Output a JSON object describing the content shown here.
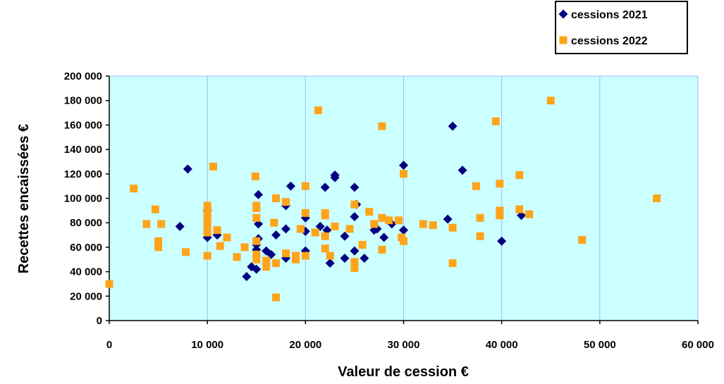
{
  "chart_data": {
    "type": "scatter",
    "xlabel": "Valeur de cession €",
    "ylabel": "Recettes encaissées €",
    "xlim": [
      0,
      60000
    ],
    "ylim": [
      0,
      200000
    ],
    "x_ticks": [
      "0",
      "10 000",
      "20 000",
      "30 000",
      "40 000",
      "50 000",
      "60 000"
    ],
    "y_ticks": [
      "0",
      "20 000",
      "40 000",
      "60 000",
      "80 000",
      "100 000",
      "120 000",
      "140 000",
      "160 000",
      "180 000",
      "200 000"
    ],
    "grid": "vertical",
    "legend_position": "top-right",
    "plot_background": "#ccffff",
    "series": [
      {
        "name": "cessions 2021",
        "marker": "diamond",
        "color": "#000080",
        "points": [
          [
            8000,
            124000
          ],
          [
            7200,
            77000
          ],
          [
            10000,
            68000
          ],
          [
            10000,
            90000
          ],
          [
            11000,
            70000
          ],
          [
            14000,
            36000
          ],
          [
            14500,
            44000
          ],
          [
            15000,
            42000
          ],
          [
            15000,
            58000
          ],
          [
            15000,
            62000
          ],
          [
            15200,
            67000
          ],
          [
            15200,
            79000
          ],
          [
            15200,
            103000
          ],
          [
            16000,
            57000
          ],
          [
            16500,
            54000
          ],
          [
            17000,
            70000
          ],
          [
            18000,
            51000
          ],
          [
            18000,
            75000
          ],
          [
            18000,
            94000
          ],
          [
            18500,
            110000
          ],
          [
            20000,
            57000
          ],
          [
            20000,
            73000
          ],
          [
            20000,
            84000
          ],
          [
            21500,
            77000
          ],
          [
            22000,
            109000
          ],
          [
            22200,
            74000
          ],
          [
            22500,
            47000
          ],
          [
            23000,
            117000
          ],
          [
            23000,
            119000
          ],
          [
            24000,
            51000
          ],
          [
            24000,
            69000
          ],
          [
            25000,
            57000
          ],
          [
            25000,
            85000
          ],
          [
            25000,
            109000
          ],
          [
            25200,
            95000
          ],
          [
            26000,
            51000
          ],
          [
            27000,
            74000
          ],
          [
            27300,
            75000
          ],
          [
            28000,
            68000
          ],
          [
            28800,
            79000
          ],
          [
            30000,
            74000
          ],
          [
            30000,
            127000
          ],
          [
            34500,
            83000
          ],
          [
            35000,
            159000
          ],
          [
            36000,
            123000
          ],
          [
            40000,
            65000
          ],
          [
            42000,
            86000
          ]
        ]
      },
      {
        "name": "cessions 2022",
        "marker": "square",
        "color": "#ffa31a",
        "points": [
          [
            0,
            30000
          ],
          [
            2500,
            108000
          ],
          [
            3800,
            79000
          ],
          [
            4700,
            91000
          ],
          [
            5000,
            60000
          ],
          [
            5000,
            65000
          ],
          [
            5300,
            79000
          ],
          [
            7800,
            56000
          ],
          [
            10000,
            53000
          ],
          [
            10000,
            72000
          ],
          [
            10000,
            77000
          ],
          [
            10000,
            82000
          ],
          [
            10000,
            88000
          ],
          [
            10000,
            94000
          ],
          [
            10600,
            126000
          ],
          [
            11000,
            74000
          ],
          [
            11300,
            61000
          ],
          [
            12000,
            68000
          ],
          [
            13000,
            52000
          ],
          [
            13800,
            60000
          ],
          [
            14900,
            118000
          ],
          [
            15000,
            54000
          ],
          [
            15000,
            65000
          ],
          [
            15000,
            84000
          ],
          [
            15000,
            92000
          ],
          [
            15000,
            94000
          ],
          [
            15000,
            50000
          ],
          [
            16000,
            44000
          ],
          [
            16000,
            49000
          ],
          [
            16800,
            80000
          ],
          [
            17000,
            19000
          ],
          [
            17000,
            47000
          ],
          [
            17000,
            100000
          ],
          [
            18000,
            55000
          ],
          [
            18000,
            97000
          ],
          [
            19000,
            50000
          ],
          [
            19000,
            53000
          ],
          [
            19500,
            75000
          ],
          [
            20000,
            53000
          ],
          [
            20000,
            88000
          ],
          [
            20000,
            110000
          ],
          [
            21000,
            72000
          ],
          [
            21300,
            172000
          ],
          [
            22000,
            59000
          ],
          [
            22000,
            69000
          ],
          [
            22000,
            86000
          ],
          [
            22000,
            88000
          ],
          [
            22500,
            53000
          ],
          [
            23000,
            77000
          ],
          [
            24500,
            75000
          ],
          [
            25000,
            43000
          ],
          [
            25000,
            48000
          ],
          [
            25000,
            95000
          ],
          [
            25800,
            62000
          ],
          [
            26500,
            89000
          ],
          [
            27000,
            79000
          ],
          [
            27800,
            58000
          ],
          [
            27800,
            84000
          ],
          [
            27800,
            159000
          ],
          [
            28500,
            82000
          ],
          [
            29500,
            82000
          ],
          [
            29800,
            68000
          ],
          [
            30000,
            65000
          ],
          [
            30000,
            120000
          ],
          [
            32000,
            79000
          ],
          [
            33000,
            78000
          ],
          [
            35000,
            47000
          ],
          [
            35000,
            76000
          ],
          [
            37400,
            110000
          ],
          [
            37800,
            69000
          ],
          [
            37800,
            84000
          ],
          [
            39400,
            163000
          ],
          [
            39800,
            86000
          ],
          [
            39800,
            90000
          ],
          [
            39800,
            112000
          ],
          [
            41800,
            91000
          ],
          [
            41800,
            119000
          ],
          [
            42800,
            87000
          ],
          [
            45000,
            180000
          ],
          [
            48200,
            66000
          ],
          [
            55800,
            100000
          ]
        ]
      }
    ]
  }
}
